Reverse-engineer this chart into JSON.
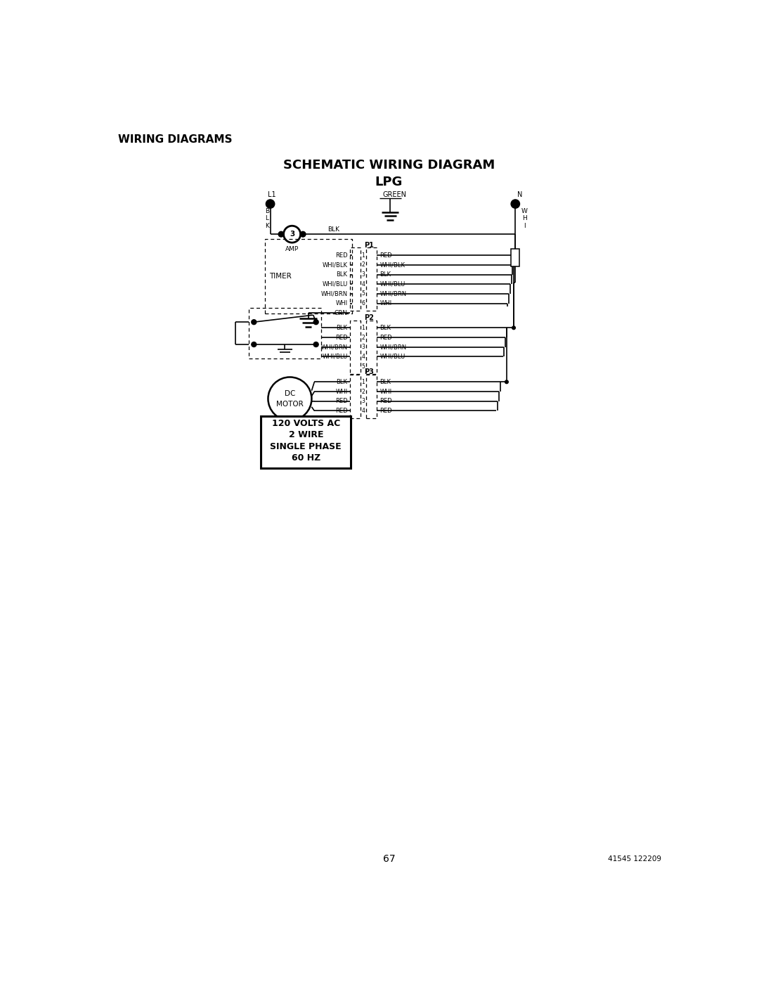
{
  "title_line1": "SCHEMATIC WIRING DIAGRAM",
  "title_line2": "LPG",
  "header": "WIRING DIAGRAMS",
  "page_number": "67",
  "doc_number": "41545 122209",
  "bg_color": "#ffffff",
  "voltage_box_lines": [
    "120 VOLTS AC",
    "2 WIRE",
    "SINGLE PHASE",
    "60 HZ"
  ],
  "p1_left_labels": [
    "RED",
    "WHI/BLK",
    "BLK",
    "WHI/BLU",
    "WHI/BRN",
    "WHI",
    "GRN"
  ],
  "p1_right_labels": [
    "RED",
    "WHI/BLK",
    "BLK",
    "WHI/BLU",
    "WHI/BRN",
    "WHI"
  ],
  "p2_left_labels": [
    "BLK",
    "RED",
    "WHI/BRN",
    "WHI/BLU"
  ],
  "p2_right_labels": [
    "BLK",
    "RED",
    "WHI/BRN",
    "WHI/BLU"
  ],
  "p3_left_labels": [
    "BLK",
    "WHI",
    "RED",
    "RED"
  ],
  "p3_right_labels": [
    "BLK",
    "WHI",
    "RED",
    "RED"
  ]
}
